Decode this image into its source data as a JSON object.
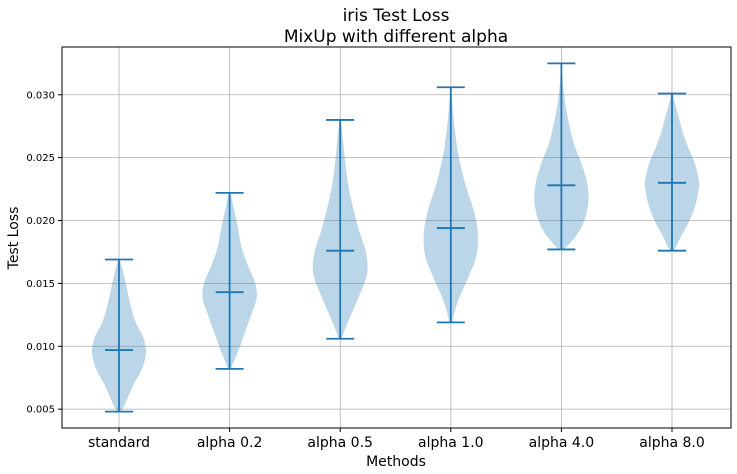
{
  "chart_data": {
    "type": "violin",
    "title": "iris Test Loss",
    "subtitle": "MixUp with different alpha",
    "xlabel": "Methods",
    "ylabel": "Test Loss",
    "ylim": [
      0.0035,
      0.0338
    ],
    "yticks": [
      "0.005",
      "0.010",
      "0.015",
      "0.020",
      "0.025",
      "0.030"
    ],
    "ytick_values": [
      0.005,
      0.01,
      0.015,
      0.02,
      0.025,
      0.03
    ],
    "grid": true,
    "color": "#1f77b4",
    "categories": [
      "standard",
      "alpha 0.2",
      "alpha 0.5",
      "alpha 1.0",
      "alpha 4.0",
      "alpha 8.0"
    ],
    "violins": [
      {
        "min": 0.0048,
        "median": 0.0097,
        "max": 0.0169,
        "density": [
          [
            0.0048,
            0.08
          ],
          [
            0.0058,
            0.3
          ],
          [
            0.007,
            0.55
          ],
          [
            0.0082,
            0.85
          ],
          [
            0.0095,
            1.0
          ],
          [
            0.0107,
            0.9
          ],
          [
            0.012,
            0.6
          ],
          [
            0.0135,
            0.4
          ],
          [
            0.015,
            0.25
          ],
          [
            0.0162,
            0.12
          ],
          [
            0.0169,
            0.03
          ]
        ]
      },
      {
        "min": 0.0082,
        "median": 0.0143,
        "max": 0.0222,
        "density": [
          [
            0.0082,
            0.05
          ],
          [
            0.0095,
            0.3
          ],
          [
            0.011,
            0.55
          ],
          [
            0.0125,
            0.8
          ],
          [
            0.0138,
            1.0
          ],
          [
            0.015,
            0.95
          ],
          [
            0.0163,
            0.7
          ],
          [
            0.0178,
            0.45
          ],
          [
            0.0195,
            0.3
          ],
          [
            0.021,
            0.15
          ],
          [
            0.0222,
            0.03
          ]
        ]
      },
      {
        "min": 0.0106,
        "median": 0.0176,
        "max": 0.028,
        "density": [
          [
            0.0106,
            0.05
          ],
          [
            0.012,
            0.3
          ],
          [
            0.014,
            0.7
          ],
          [
            0.0158,
            1.0
          ],
          [
            0.0175,
            0.95
          ],
          [
            0.0192,
            0.7
          ],
          [
            0.021,
            0.48
          ],
          [
            0.0228,
            0.3
          ],
          [
            0.0248,
            0.18
          ],
          [
            0.0265,
            0.1
          ],
          [
            0.028,
            0.02
          ]
        ]
      },
      {
        "min": 0.0119,
        "median": 0.0194,
        "max": 0.0306,
        "density": [
          [
            0.0119,
            0.05
          ],
          [
            0.0135,
            0.25
          ],
          [
            0.0155,
            0.65
          ],
          [
            0.0172,
            0.95
          ],
          [
            0.019,
            1.0
          ],
          [
            0.0208,
            0.85
          ],
          [
            0.0228,
            0.55
          ],
          [
            0.025,
            0.3
          ],
          [
            0.0272,
            0.15
          ],
          [
            0.0292,
            0.06
          ],
          [
            0.0306,
            0.02
          ]
        ]
      },
      {
        "min": 0.0177,
        "median": 0.0228,
        "max": 0.0325,
        "density": [
          [
            0.0177,
            0.1
          ],
          [
            0.0188,
            0.55
          ],
          [
            0.02,
            0.85
          ],
          [
            0.0215,
            1.0
          ],
          [
            0.023,
            0.95
          ],
          [
            0.0245,
            0.75
          ],
          [
            0.026,
            0.48
          ],
          [
            0.0275,
            0.3
          ],
          [
            0.0292,
            0.15
          ],
          [
            0.031,
            0.05
          ],
          [
            0.0325,
            0.02
          ]
        ]
      },
      {
        "min": 0.0176,
        "median": 0.023,
        "max": 0.0301,
        "density": [
          [
            0.0176,
            0.08
          ],
          [
            0.0188,
            0.35
          ],
          [
            0.02,
            0.65
          ],
          [
            0.0215,
            0.9
          ],
          [
            0.023,
            1.0
          ],
          [
            0.0245,
            0.85
          ],
          [
            0.0258,
            0.6
          ],
          [
            0.027,
            0.4
          ],
          [
            0.0282,
            0.25
          ],
          [
            0.0294,
            0.1
          ],
          [
            0.0301,
            0.03
          ]
        ]
      }
    ]
  }
}
